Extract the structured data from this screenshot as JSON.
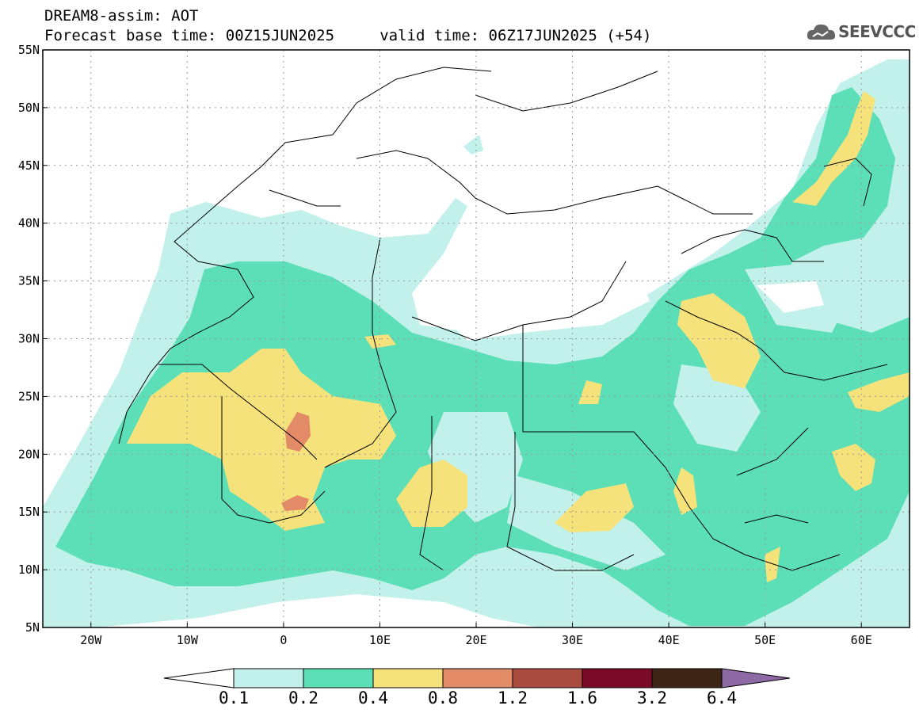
{
  "header": {
    "title_line1": "DREAM8-assim: AOT",
    "title_line2": "Forecast base time: 00Z15JUN2025     valid time: 06Z17JUN2025 (+54)"
  },
  "logo": {
    "text": "SEEVCCC",
    "icon": "cloud-icon"
  },
  "map": {
    "projection": "lat-lon",
    "lon_range": [
      -25,
      65
    ],
    "lat_range": [
      5,
      55
    ],
    "grid": true,
    "lat_labels": [
      "55N",
      "50N",
      "45N",
      "40N",
      "35N",
      "30N",
      "25N",
      "20N",
      "15N",
      "10N",
      "5N"
    ],
    "lon_labels": [
      "20W",
      "10W",
      "0",
      "10E",
      "20E",
      "30E",
      "40E",
      "50E",
      "60E"
    ]
  },
  "colorbar": {
    "labels": [
      "0.1",
      "0.2",
      "0.4",
      "0.8",
      "1.2",
      "1.6",
      "3.2",
      "6.4"
    ],
    "colors": [
      "#ffffff",
      "#c2f0ea",
      "#5cdfb7",
      "#f5e27a",
      "#e38a66",
      "#a94a3f",
      "#7a0a2a",
      "#3c2514",
      "#8e6aa5"
    ]
  }
}
